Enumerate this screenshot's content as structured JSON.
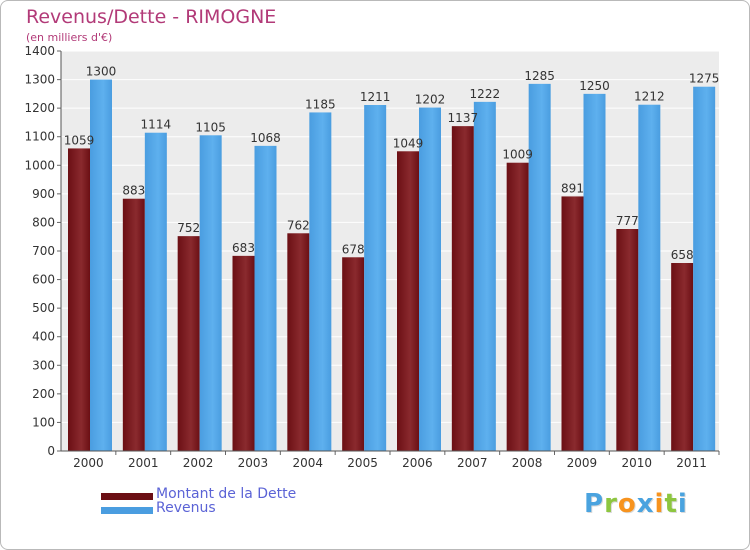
{
  "colors": {
    "debt": "#6b0f14",
    "debt_light": "#8a2a2e",
    "revenue": "#4a9de0",
    "revenue_light": "#5eb0ee",
    "title": "#b23a78",
    "legend_text": "#5b63d6",
    "plot_bg": "#ececec",
    "grid": "#ffffff"
  },
  "logo": {
    "letters": [
      "P",
      "r",
      "o",
      "x",
      "i",
      "t",
      "i"
    ],
    "colors": [
      "#4aa3df",
      "#8dc63f",
      "#f7931e",
      "#4aa3df",
      "#f7931e",
      "#8dc63f",
      "#4aa3df"
    ]
  },
  "chart_data": {
    "type": "bar",
    "title": "Revenus/Dette - RIMOGNE",
    "subtitle": "(en milliers d'€)",
    "xlabel": "",
    "ylabel": "",
    "ylim": [
      0,
      1400
    ],
    "yticks": [
      0,
      100,
      200,
      300,
      400,
      500,
      600,
      700,
      800,
      900,
      1000,
      1100,
      1200,
      1300,
      1400
    ],
    "grid": true,
    "legend_position": "bottom-left",
    "categories": [
      "2000",
      "2001",
      "2002",
      "2003",
      "2004",
      "2005",
      "2006",
      "2007",
      "2008",
      "2009",
      "2010",
      "2011"
    ],
    "series": [
      {
        "name": "Montant de la Dette",
        "values": [
          1059,
          883,
          752,
          683,
          762,
          678,
          1049,
          1137,
          1009,
          891,
          777,
          658
        ],
        "labels": [
          "1059",
          "883",
          "752",
          "683",
          "762",
          "678",
          "1049",
          "1137",
          "1009",
          "891",
          "777",
          "658"
        ]
      },
      {
        "name": "Revenus",
        "values": [
          1300,
          1114,
          1105,
          1068,
          1185,
          1211,
          1202,
          1222,
          1285,
          1250,
          1212,
          1275
        ],
        "labels": [
          "1300",
          "1114",
          "1105",
          "1068",
          "1185",
          "1211",
          "1202",
          "1222",
          "1285",
          "1250",
          "1212",
          "1275"
        ]
      }
    ]
  }
}
